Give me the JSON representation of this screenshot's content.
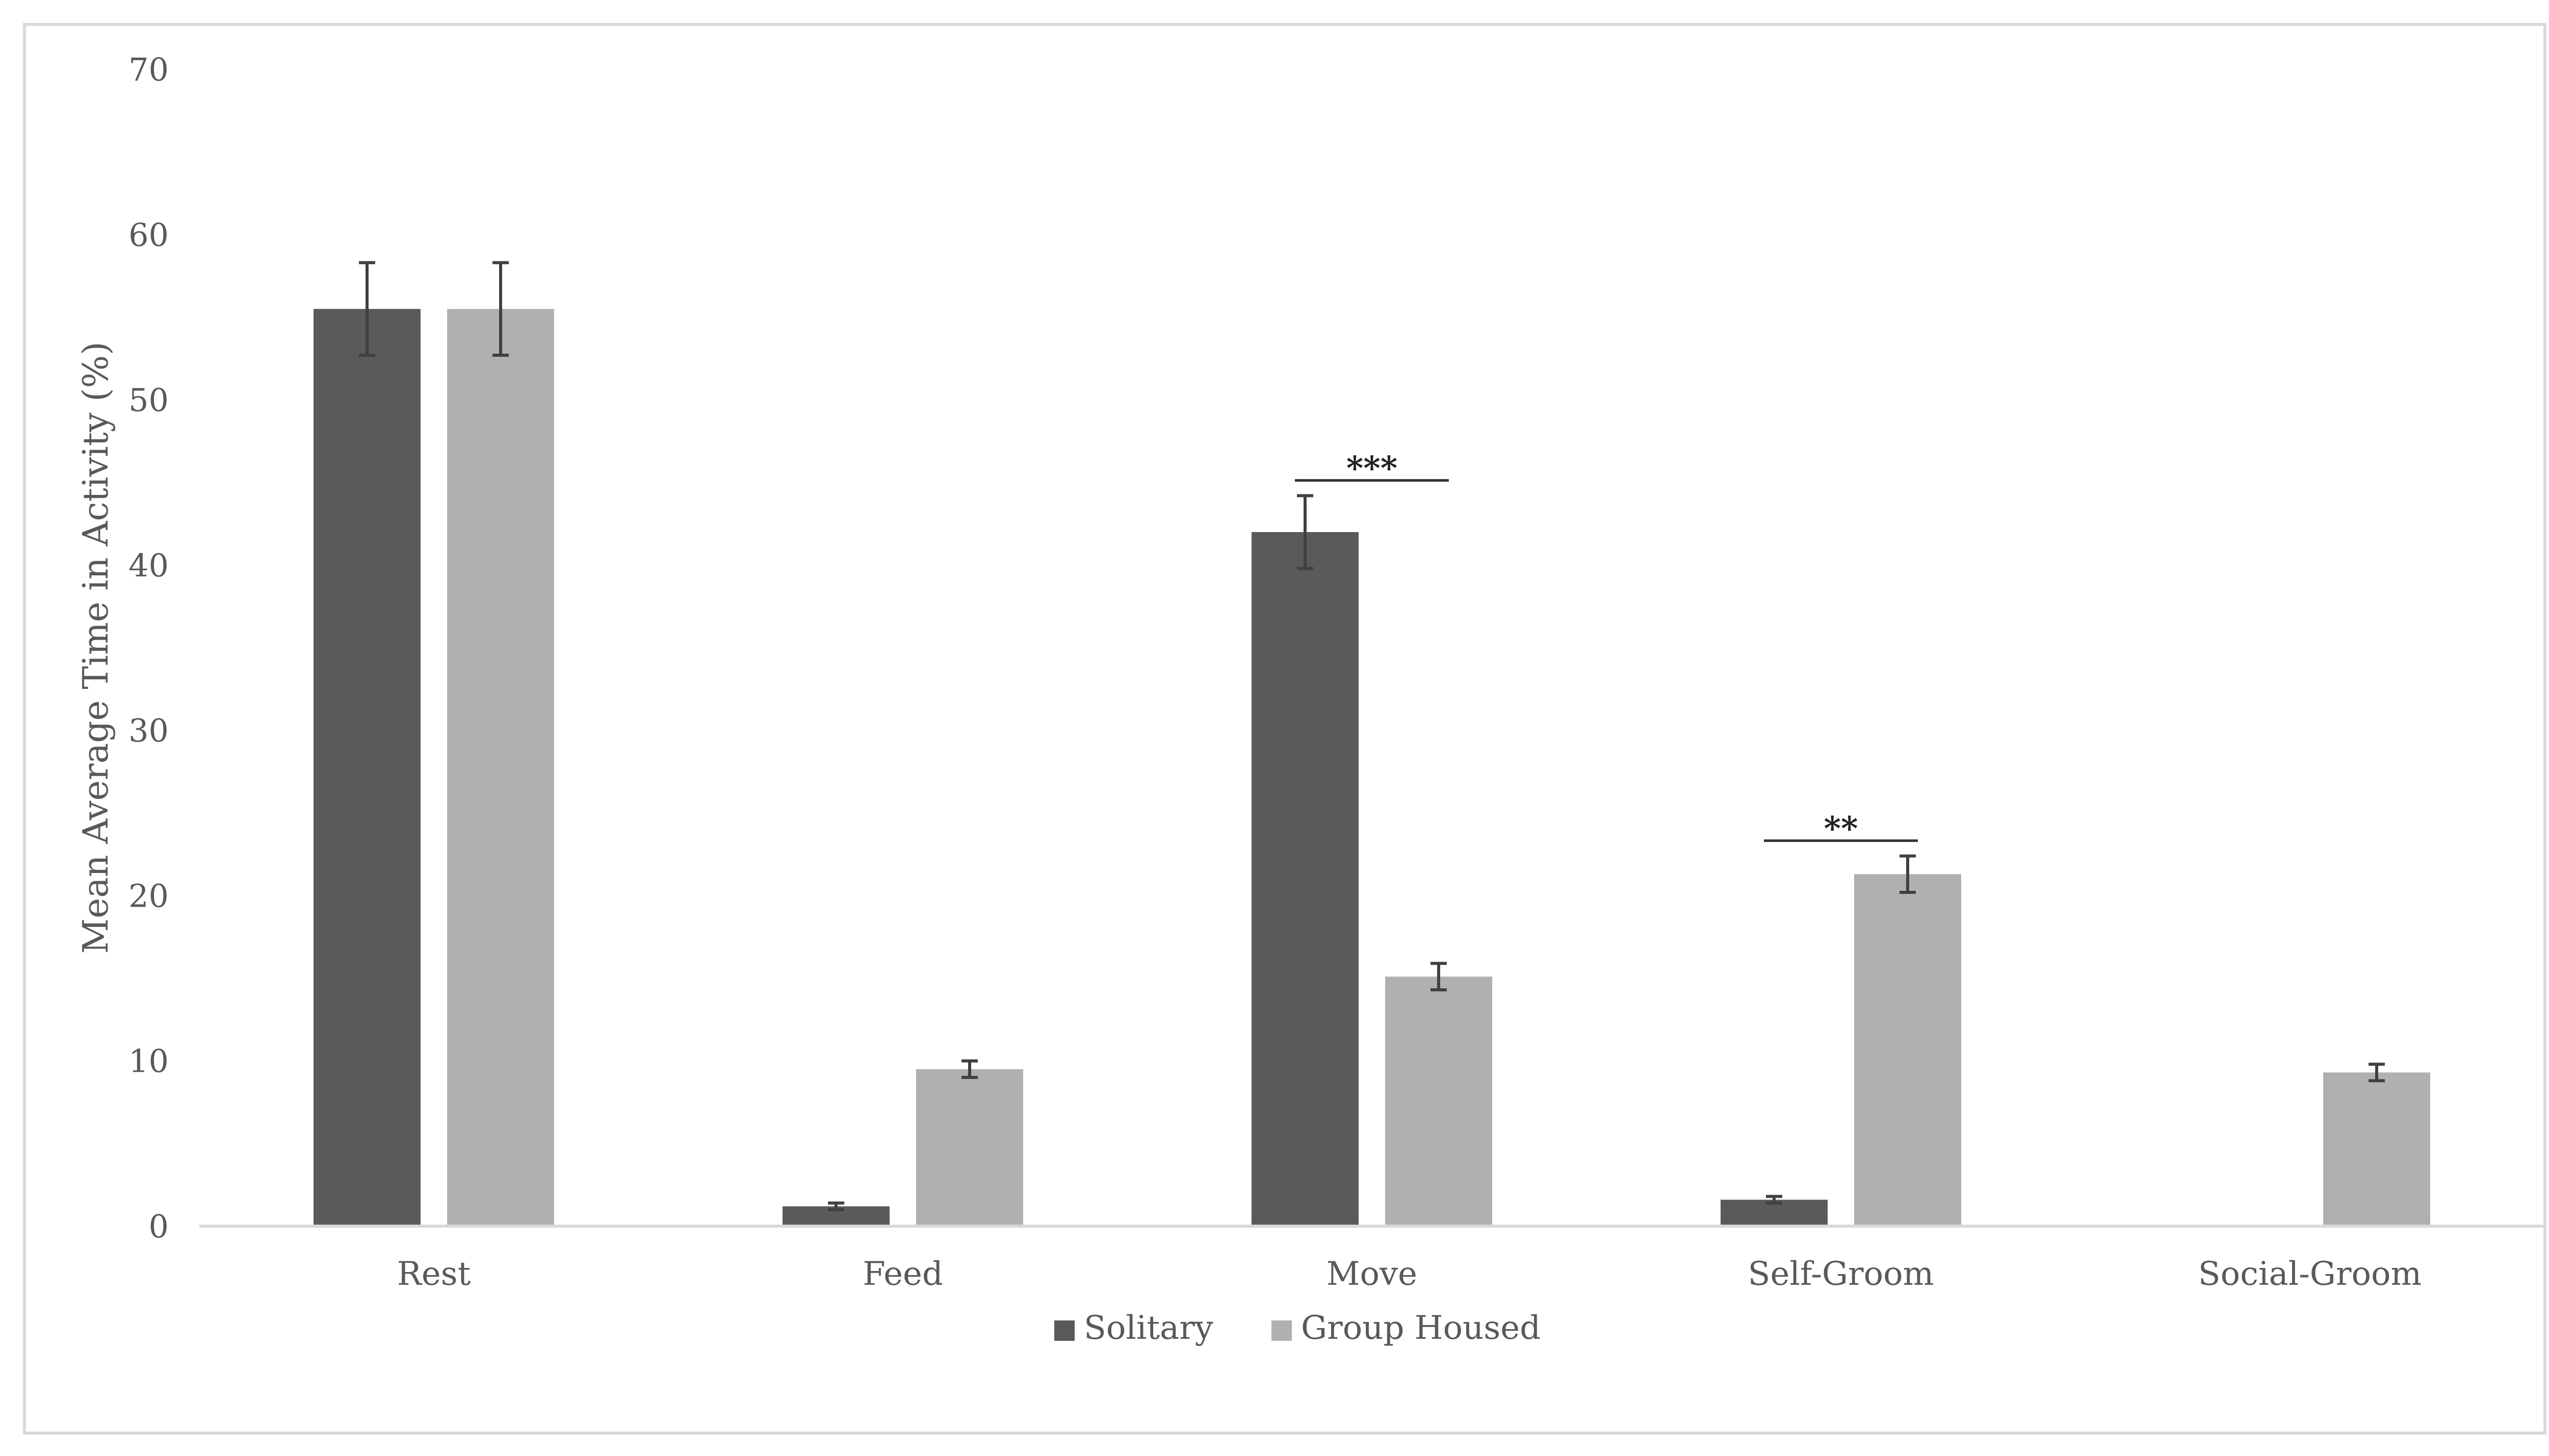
{
  "chart_data": {
    "type": "bar",
    "title": "",
    "xlabel": "",
    "ylabel": "Mean Average Time in Activity (%)",
    "categories": [
      "Rest",
      "Feed",
      "Move",
      "Self-Groom",
      "Social-Groom"
    ],
    "ylim": [
      0,
      70
    ],
    "yticks": [
      0,
      10,
      20,
      30,
      40,
      50,
      60,
      70
    ],
    "grid": false,
    "legend_position": "bottom",
    "series": [
      {
        "name": "Solitary",
        "color": "#5a5a5a",
        "values": [
          55.5,
          1.2,
          42.0,
          1.6,
          0
        ],
        "errors": [
          2.8,
          0.2,
          2.2,
          0.2,
          0
        ]
      },
      {
        "name": "Group Housed",
        "color": "#b0b0b0",
        "values": [
          55.5,
          9.5,
          15.1,
          21.3,
          9.3
        ],
        "errors": [
          2.8,
          0.5,
          0.8,
          1.1,
          0.5
        ]
      }
    ],
    "annotations": [
      {
        "category": "Move",
        "text": "***"
      },
      {
        "category": "Self-Groom",
        "text": "**"
      }
    ]
  }
}
